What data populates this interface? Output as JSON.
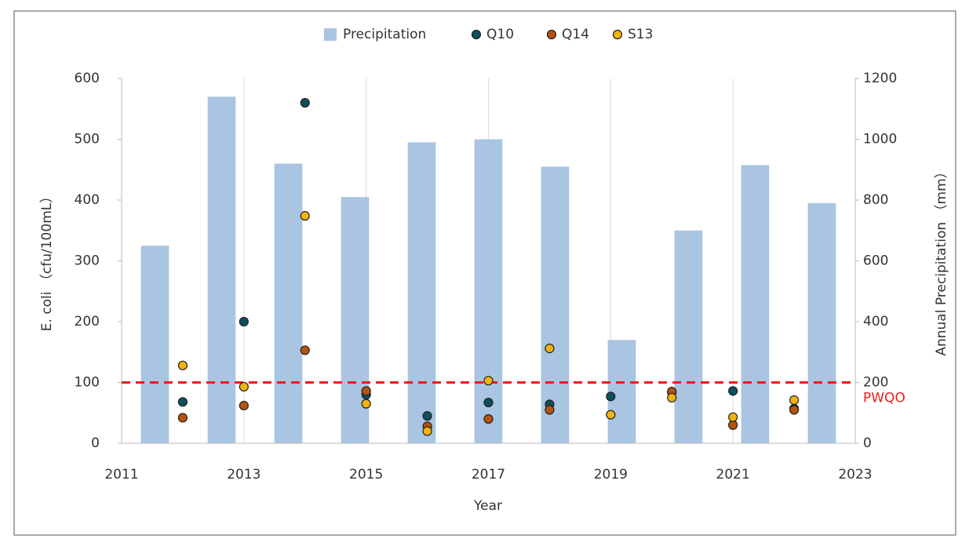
{
  "chart_data": {
    "type": "bar_scatter",
    "xlabel": "Year",
    "ylabel": "E.  coli （cfu/100mL）",
    "y2label": "Annual  Precipitation （mm）",
    "xlim": [
      2011,
      2023
    ],
    "xticks": [
      2011,
      2013,
      2015,
      2017,
      2019,
      2021,
      2023
    ],
    "ylim": [
      0,
      600
    ],
    "yticks": [
      0,
      100,
      200,
      300,
      400,
      500,
      600
    ],
    "y2lim": [
      0,
      1200
    ],
    "y2ticks": [
      0,
      200,
      400,
      600,
      800,
      1000,
      1200
    ],
    "grid": "x",
    "x": [
      2012,
      2013,
      2014,
      2015,
      2016,
      2017,
      2018,
      2019,
      2020,
      2021,
      2022
    ],
    "bars": {
      "name": "Precipitation",
      "color": "#a9c5e2",
      "axis": "y2",
      "values": [
        650,
        1140,
        920,
        810,
        990,
        1000,
        910,
        340,
        700,
        915,
        790
      ]
    },
    "series": [
      {
        "name": "Q10",
        "color": "#0e4f5b",
        "values": [
          68,
          200,
          560,
          80,
          45,
          67,
          64,
          77,
          84,
          86,
          57
        ]
      },
      {
        "name": "Q14",
        "color": "#b5530f",
        "values": [
          42,
          62,
          153,
          86,
          28,
          40,
          55,
          null,
          85,
          30,
          55
        ]
      },
      {
        "name": "S13",
        "color": "#f2b30c",
        "values": [
          128,
          93,
          374,
          65,
          20,
          103,
          156,
          47,
          75,
          43,
          71
        ]
      }
    ],
    "reference_line": {
      "value": 100,
      "label": "PWQO",
      "color": "#ee1c1c"
    },
    "legend": "top"
  }
}
